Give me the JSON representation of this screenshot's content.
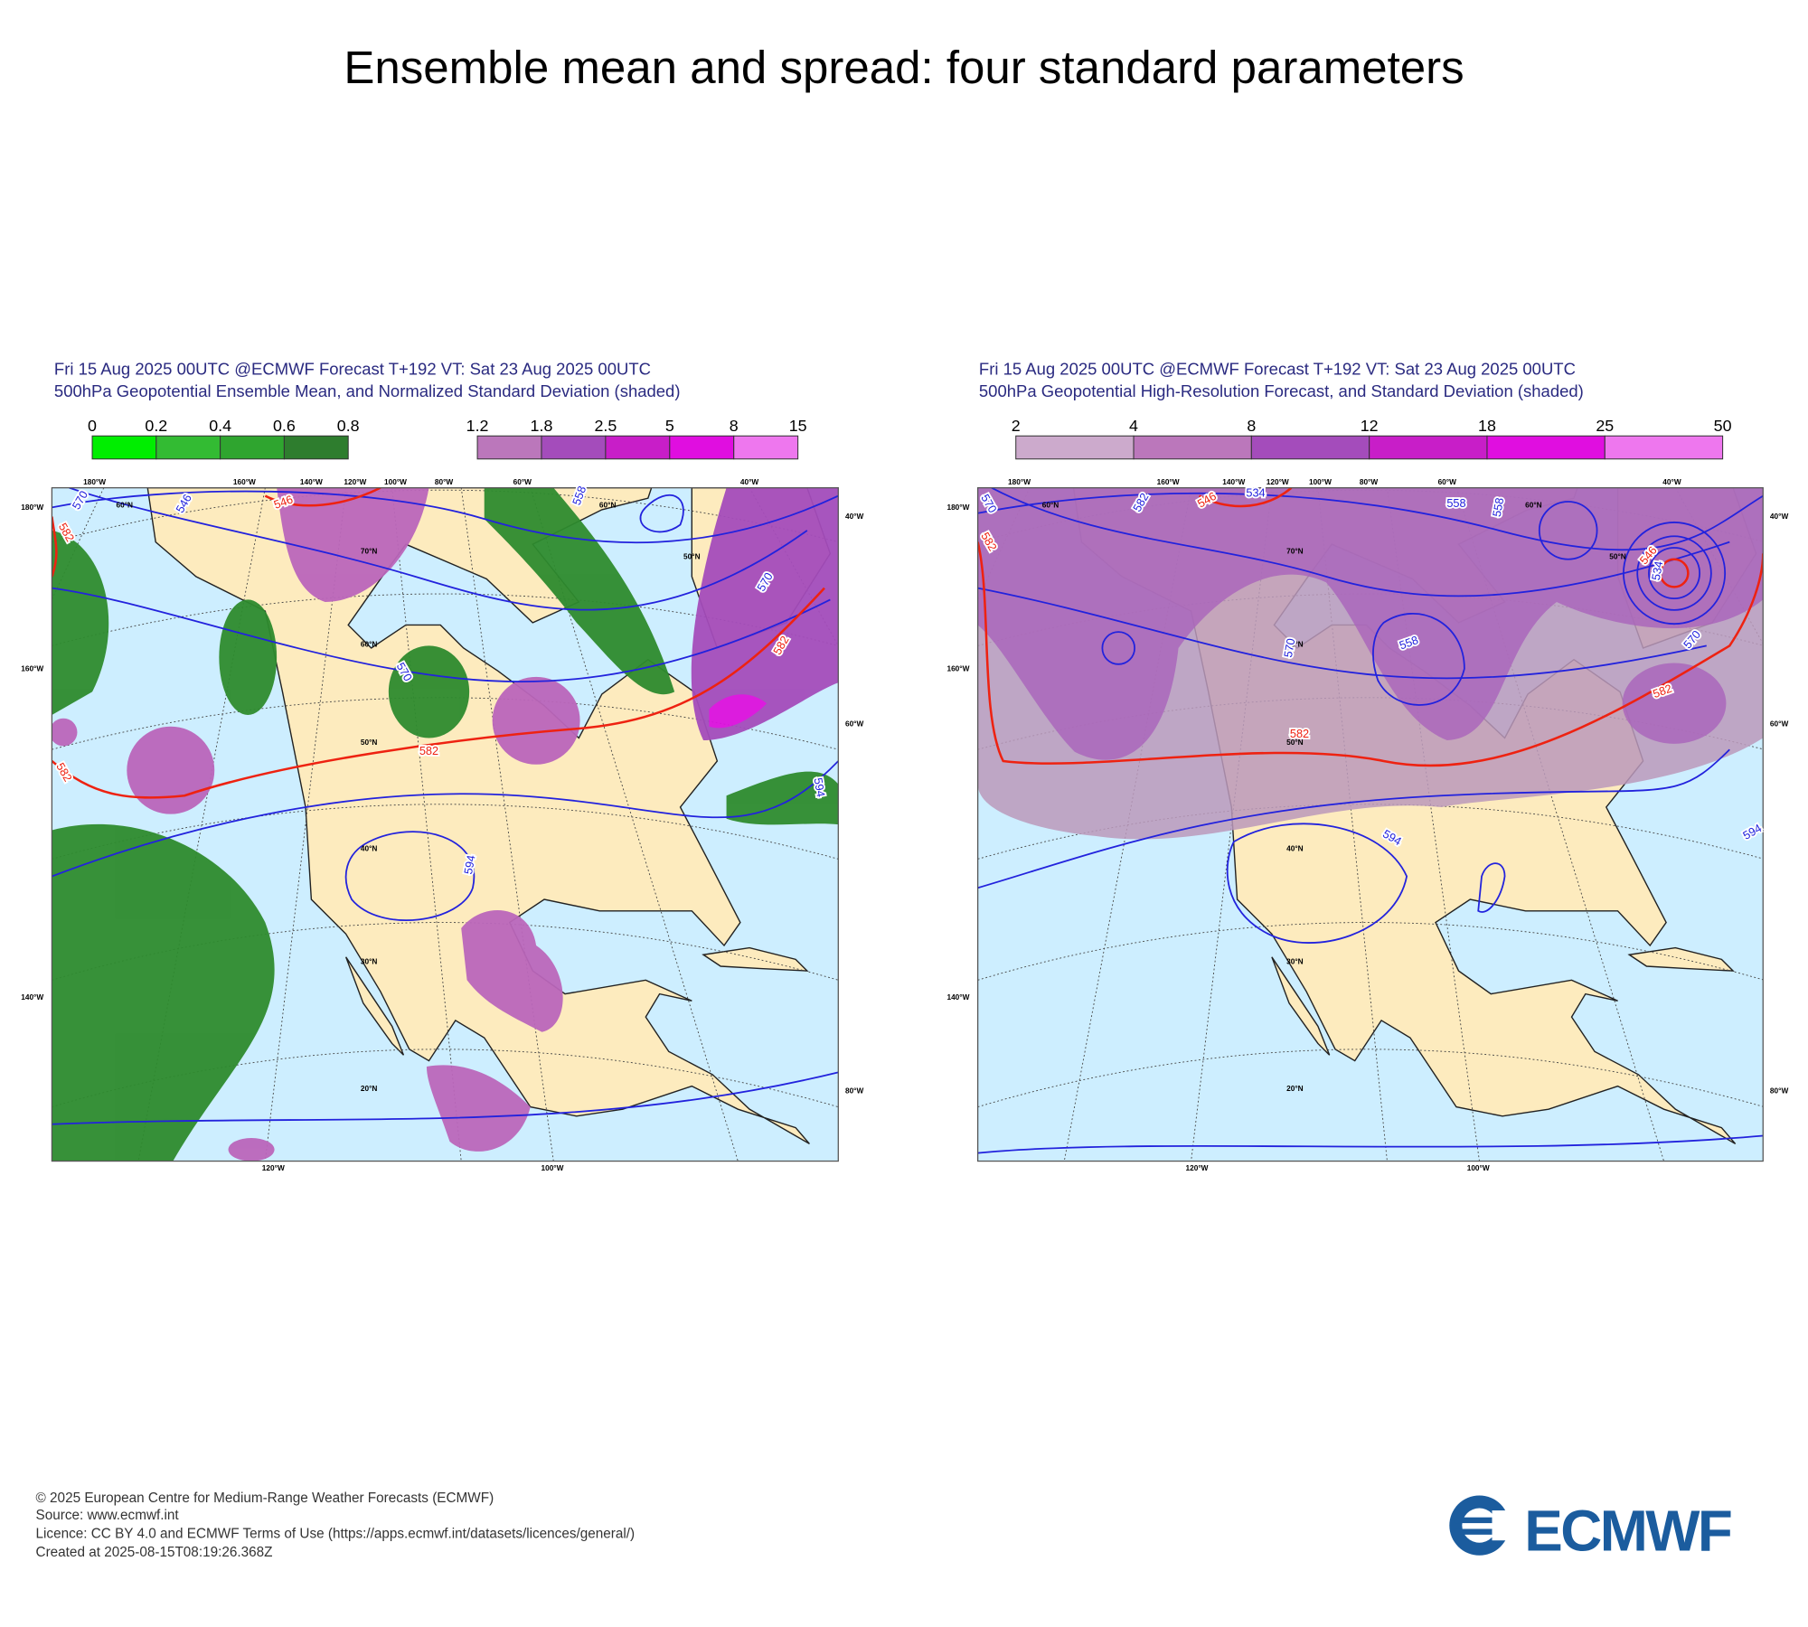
{
  "title": "Ensemble mean and spread: four standard parameters",
  "panels": [
    {
      "header": [
        "Fri 15 Aug 2025 00UTC @ECMWF Forecast T+192 VT: Sat 23 Aug 2025 00UTC",
        "500hPa Geopotential Ensemble Mean, and Normalized Standard Deviation (shaded)"
      ],
      "colorbars": [
        {
          "ticks": [
            0,
            0.2,
            0.4,
            0.6,
            0.8
          ],
          "colors": [
            "#00ee00",
            "#33bb33",
            "#2fa52f",
            "#2e7d2e"
          ]
        },
        {
          "ticks": [
            1.2,
            1.8,
            2.5,
            5,
            8,
            15
          ],
          "colors": [
            "#bb77bb",
            "#a44cbb",
            "#c81ec8",
            "#e00ee0",
            "#ee77ee"
          ]
        }
      ],
      "top_labels": [
        "180°W",
        "160°W",
        "140°W",
        "120°W",
        "100°W",
        "80°W",
        "60°W",
        "40°W"
      ],
      "left_labels": [
        "180°W",
        "160°W",
        "140°W"
      ],
      "right_labels": [
        "40°W",
        "60°W",
        "80°W"
      ],
      "bottom_labels": [
        "120°W",
        "100°W"
      ],
      "lat_labels": [
        "60°N",
        "60°N",
        "50°N",
        "70°N",
        "60°N",
        "50°N",
        "40°N",
        "30°N",
        "20°N"
      ],
      "contour_labels": [
        570,
        546,
        546,
        558,
        582,
        570,
        582,
        582,
        570,
        582,
        594,
        594
      ]
    },
    {
      "header": [
        "Fri 15 Aug 2025 00UTC @ECMWF Forecast T+192 VT: Sat 23 Aug 2025 00UTC",
        "500hPa Geopotential High-Resolution Forecast, and Standard Deviation (shaded)"
      ],
      "colorbars": [
        {
          "ticks": [
            2,
            4,
            8,
            12,
            18,
            25,
            50
          ],
          "colors": [
            "#ccaacc",
            "#bb77bb",
            "#a44cbb",
            "#c81ec8",
            "#e00ee0",
            "#ee77ee"
          ]
        }
      ],
      "top_labels": [
        "180°W",
        "160°W",
        "140°W",
        "120°W",
        "100°W",
        "80°W",
        "60°W",
        "40°W"
      ],
      "left_labels": [
        "180°W",
        "160°W",
        "140°W"
      ],
      "right_labels": [
        "40°W",
        "60°W",
        "80°W"
      ],
      "bottom_labels": [
        "120°W",
        "100°W"
      ],
      "lat_labels": [
        "60°N",
        "60°N",
        "50°N",
        "70°N",
        "60°N",
        "50°N",
        "40°N",
        "30°N",
        "20°N"
      ],
      "contour_labels": [
        570,
        582,
        582,
        546,
        534,
        558,
        558,
        546,
        534,
        570,
        558,
        570,
        582,
        582,
        594,
        594
      ]
    }
  ],
  "footer": [
    "© 2025 European Centre for Medium-Range Weather Forecasts (ECMWF)",
    "Source: www.ecmwf.int",
    "Licence: CC BY 4.0 and ECMWF Terms of Use (https://apps.ecmwf.int/datasets/licences/general/)",
    "Created at 2025-08-15T08:19:26.368Z"
  ],
  "logo_text": "ECMWF"
}
